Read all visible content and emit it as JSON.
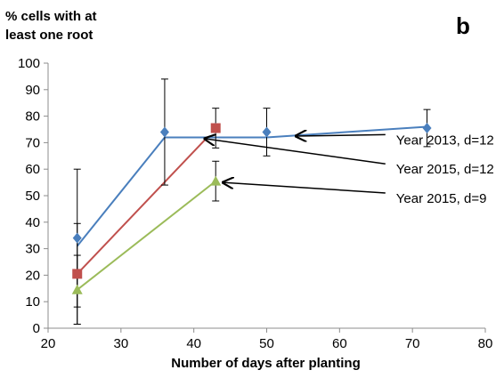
{
  "chart_data": {
    "type": "line",
    "ylabel": "% cells with at\nleast one root",
    "xlabel": "Number of days after planting",
    "panel_label": "b",
    "xlim": [
      20,
      80
    ],
    "ylim": [
      0,
      100
    ],
    "xticks": [
      20,
      30,
      40,
      50,
      60,
      70,
      80
    ],
    "yticks": [
      0,
      10,
      20,
      30,
      40,
      50,
      60,
      70,
      80,
      90,
      100
    ],
    "series": [
      {
        "name": "Year 2013, d=12",
        "color": "#4a7fbd",
        "marker": "diamond",
        "x": [
          24,
          36,
          43,
          50,
          72
        ],
        "y": [
          34,
          74,
          75.5,
          74,
          75.5
        ],
        "err": [
          26,
          20,
          7.5,
          9,
          7
        ],
        "line_x": [
          24,
          36,
          50,
          72
        ],
        "line_y": [
          31,
          72,
          72,
          76
        ]
      },
      {
        "name": "Year 2015, d=12",
        "color": "#c0504d",
        "marker": "square",
        "x": [
          24,
          43
        ],
        "y": [
          20.5,
          75.5
        ],
        "err": [
          19,
          0
        ],
        "line_x": [
          24,
          41.5
        ],
        "line_y": [
          20.5,
          71
        ]
      },
      {
        "name": "Year 2015, d=9",
        "color": "#9bbb59",
        "marker": "triangle",
        "x": [
          24,
          43
        ],
        "y": [
          14.5,
          55.5
        ],
        "err": [
          13,
          7.5
        ],
        "line_x": [
          24,
          43
        ],
        "line_y": [
          14.5,
          55.5
        ]
      }
    ],
    "annotations": [
      {
        "text": "Year 2013, d=12",
        "arrow_to": [
          54,
          72.5
        ],
        "text_at": [
          68,
          71
        ]
      },
      {
        "text": "Year 2015, d=12",
        "arrow_to": [
          41.5,
          71.5
        ],
        "text_at": [
          68,
          60
        ]
      },
      {
        "text": "Year 2015, d=9",
        "arrow_to": [
          44,
          55
        ],
        "text_at": [
          68,
          49
        ]
      }
    ]
  }
}
